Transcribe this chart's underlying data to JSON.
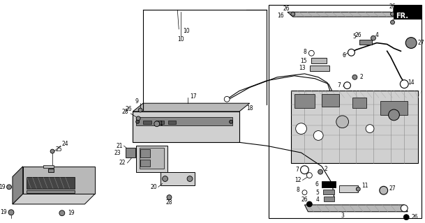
{
  "bg_color": "#ffffff",
  "fig_width": 6.09,
  "fig_height": 3.2,
  "dpi": 100,
  "lc": "#000000",
  "tc": "#000000",
  "gray1": "#b8b8b8",
  "gray2": "#888888",
  "gray3": "#d0d0d0",
  "fs": 5.5
}
